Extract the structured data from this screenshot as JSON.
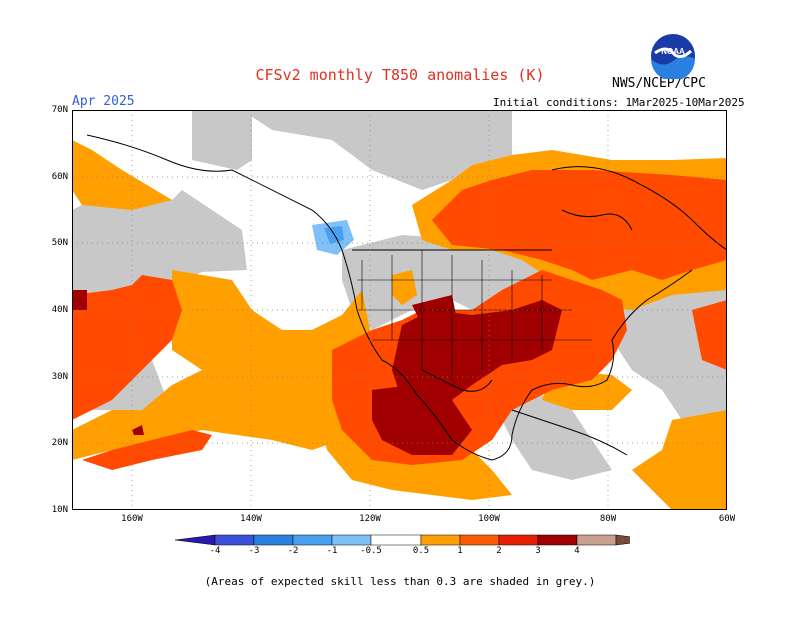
{
  "header": {
    "title": "CFSv2 monthly T850 anomalies (K)",
    "month": "Apr 2025",
    "agency": "NWS/NCEP/CPC",
    "initial_conditions": "Initial conditions: 1Mar2025-10Mar2025",
    "logo_text": "NOAA"
  },
  "map": {
    "lat_labels": [
      "70N",
      "60N",
      "50N",
      "40N",
      "30N",
      "20N",
      "10N"
    ],
    "lon_labels": [
      "160W",
      "140W",
      "120W",
      "100W",
      "80W",
      "60W"
    ],
    "lat_range": [
      10,
      70
    ],
    "lon_range": [
      -170,
      -60
    ]
  },
  "legend": {
    "labels": [
      "-4",
      "-3",
      "-2",
      "-1",
      "-0.5",
      "0.5",
      "1",
      "2",
      "3",
      "4"
    ],
    "colors": [
      "#2a18b0",
      "#3a50d8",
      "#2c80e0",
      "#4aa0f0",
      "#80c0f8",
      "#ffffff",
      "#ffa000",
      "#ff5a00",
      "#e82000",
      "#a00000",
      "#c8a090",
      "#7a4a3a"
    ],
    "skill_shade_color": "#c8c8c8"
  },
  "footnote": "(Areas of expected skill less than 0.3 are shaded in grey.)"
}
